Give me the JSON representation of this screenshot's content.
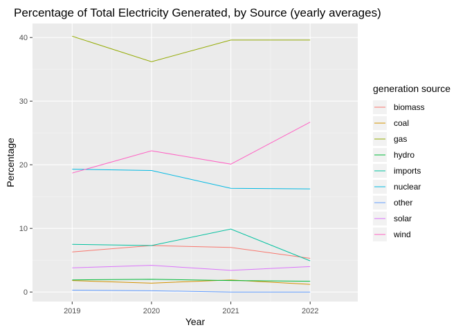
{
  "chart_data": {
    "type": "line",
    "title": "Percentage of Total Electricity Generated, by Source (yearly averages)",
    "xlabel": "Year",
    "ylabel": "Percentage",
    "x": [
      2019,
      2020,
      2021,
      2022
    ],
    "xlim": [
      2018.5,
      2022.6
    ],
    "ylim": [
      -1.5,
      42.2
    ],
    "yticks": [
      0,
      10,
      20,
      30,
      40
    ],
    "grid": true,
    "legend": {
      "title": "generation source",
      "position": "right"
    },
    "series": [
      {
        "name": "biomass",
        "color": "#F8766D",
        "values": [
          6.3,
          7.3,
          7.0,
          5.3
        ]
      },
      {
        "name": "coal",
        "color": "#D39200",
        "values": [
          1.8,
          1.4,
          1.9,
          1.2
        ]
      },
      {
        "name": "gas",
        "color": "#93AA00",
        "values": [
          40.2,
          36.2,
          39.6,
          39.6
        ]
      },
      {
        "name": "hydro",
        "color": "#00BA38",
        "values": [
          1.9,
          2.0,
          1.8,
          1.7
        ]
      },
      {
        "name": "imports",
        "color": "#00C19F",
        "values": [
          7.5,
          7.3,
          9.9,
          4.9
        ]
      },
      {
        "name": "nuclear",
        "color": "#00B9E3",
        "values": [
          19.3,
          19.1,
          16.3,
          16.2
        ]
      },
      {
        "name": "other",
        "color": "#619CFF",
        "values": [
          0.3,
          0.2,
          0.0,
          0.0
        ]
      },
      {
        "name": "solar",
        "color": "#DB72FB",
        "values": [
          3.8,
          4.2,
          3.4,
          4.0
        ]
      },
      {
        "name": "wind",
        "color": "#FF61C3",
        "values": [
          18.7,
          22.2,
          20.1,
          26.7
        ]
      }
    ]
  }
}
